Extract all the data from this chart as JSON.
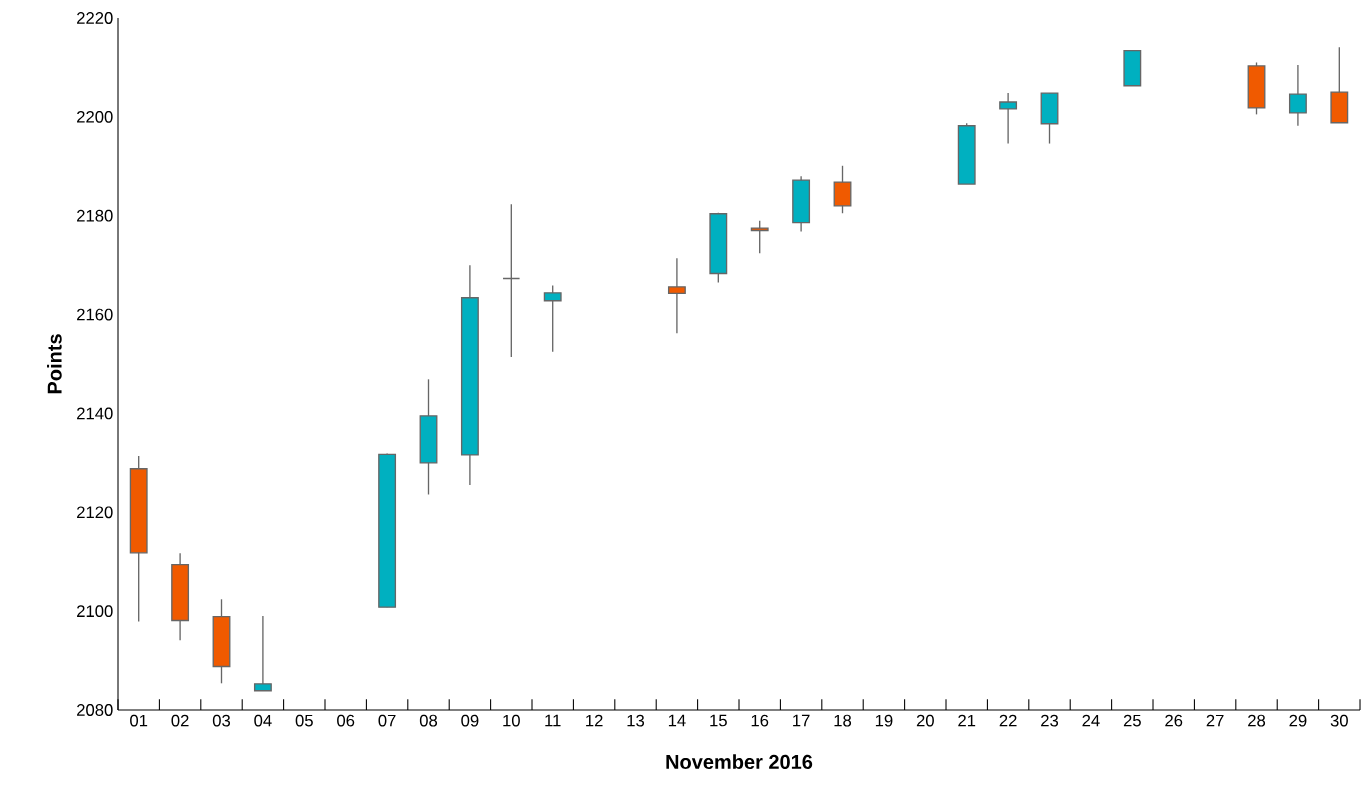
{
  "chart_data": {
    "type": "candlestick",
    "xlabel": "November 2016",
    "ylabel": "Points",
    "categories": [
      "01",
      "02",
      "03",
      "04",
      "05",
      "06",
      "07",
      "08",
      "09",
      "10",
      "11",
      "12",
      "13",
      "14",
      "15",
      "16",
      "17",
      "18",
      "19",
      "20",
      "21",
      "22",
      "23",
      "24",
      "25",
      "26",
      "27",
      "28",
      "29",
      "30"
    ],
    "ohlc": [
      [
        2128.8,
        2131.4,
        2097.9,
        2111.8
      ],
      [
        2109.4,
        2111.7,
        2094.1,
        2098.1
      ],
      [
        2098.9,
        2102.4,
        2085.4,
        2088.8
      ],
      [
        2083.9,
        2099.0,
        2083.9,
        2085.3
      ],
      null,
      null,
      [
        2100.8,
        2131.9,
        2100.8,
        2131.7
      ],
      [
        2130.0,
        2146.9,
        2123.6,
        2139.5
      ],
      [
        2131.6,
        2170.0,
        2125.5,
        2163.4
      ],
      [
        2167.3,
        2182.3,
        2151.4,
        2167.3
      ],
      [
        2162.8,
        2165.9,
        2152.5,
        2164.4
      ],
      null,
      null,
      [
        2165.6,
        2171.4,
        2156.2,
        2164.3
      ],
      [
        2168.3,
        2180.6,
        2166.5,
        2180.4
      ],
      [
        2177.5,
        2179.0,
        2172.4,
        2177.0
      ],
      [
        2178.6,
        2188.0,
        2176.8,
        2187.2
      ],
      [
        2186.8,
        2190.1,
        2180.5,
        2182.0
      ],
      null,
      null,
      [
        2186.4,
        2198.7,
        2186.4,
        2198.2
      ],
      [
        2201.6,
        2204.8,
        2194.6,
        2203.0
      ],
      [
        2198.6,
        2204.8,
        2194.6,
        2204.8
      ],
      null,
      [
        2206.3,
        2213.4,
        2206.3,
        2213.4
      ],
      null,
      null,
      [
        2210.3,
        2211.0,
        2200.5,
        2201.8
      ],
      [
        2200.8,
        2210.5,
        2198.2,
        2204.6
      ],
      [
        2205.0,
        2214.1,
        2198.8,
        2198.8
      ]
    ],
    "colors": [
      "#f05a00",
      "#f05a00",
      "#f05a00",
      "#00b0c0",
      null,
      null,
      "#00b0c0",
      "#00b0c0",
      "#00b0c0",
      "#666666",
      "#00b0c0",
      null,
      null,
      "#f05a00",
      "#00b0c0",
      "#f05a00",
      "#00b0c0",
      "#f05a00",
      null,
      null,
      "#00b0c0",
      "#00b0c0",
      "#00b0c0",
      null,
      "#00b0c0",
      null,
      null,
      "#f05a00",
      "#00b0c0",
      "#f05a00"
    ],
    "ylim": [
      2080,
      2220
    ],
    "yticks": [
      2080,
      2100,
      2120,
      2140,
      2160,
      2180,
      2200,
      2220
    ]
  }
}
